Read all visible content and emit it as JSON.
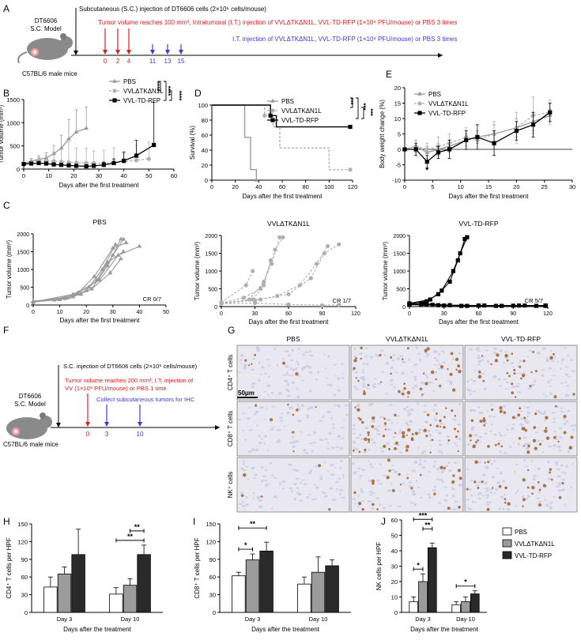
{
  "colors": {
    "red": "#e31a1c",
    "blue": "#3a3adb",
    "pbs": "#9a9a9a",
    "vvl": "#b0b0b0",
    "vtd": "#000000",
    "brown": "#a0632b",
    "tissue": "#c8cde4"
  },
  "panelA": {
    "letter": "A",
    "model": [
      "DT6606",
      "S.C. Model"
    ],
    "mice": "C57BL/6 male mice",
    "sc_injection": "Subcutaneous (S.C.) injection of DT6606 cells (2×10⁶ cells/mouse)",
    "red_text": "Tumor volume  reaches 100 mm³, Intratumoral (I.T.) injection of VVLΔTKΔN1L, VVL-TD-RFP (1×10⁸ PFU/mouse) or PBS 3 times",
    "blue_text": "I.T. injection of VVLΔTKΔN1L, VVL-TD-RFP (1×10⁸ PFU/mouse) or PBS 3 times",
    "red_days": [
      "0",
      "2",
      "4"
    ],
    "blue_days": [
      "11",
      "13",
      "15"
    ]
  },
  "panelB": {
    "letter": "B",
    "chart_data": {
      "type": "line",
      "title": "",
      "xlabel": "Days after the first treatment",
      "ylabel": "Tumor volume (mm³)",
      "xlim": [
        0,
        60
      ],
      "ylim": [
        0,
        1500
      ],
      "xticks": [
        "0",
        "10",
        "20",
        "30",
        "40",
        "50",
        "60"
      ],
      "yticks": [
        "0",
        "500",
        "1000",
        "1500"
      ],
      "legend": [
        "PBS",
        "VVLΔTKΔN1L",
        "VVL-TD-RFP"
      ],
      "sig": [
        "****",
        "****",
        "****"
      ],
      "series": [
        {
          "name": "PBS",
          "x": [
            0,
            3,
            6,
            9,
            12,
            15,
            18,
            21,
            25
          ],
          "y": [
            120,
            170,
            210,
            240,
            330,
            450,
            650,
            800,
            880
          ],
          "err": [
            30,
            60,
            80,
            110,
            180,
            280,
            420,
            480,
            460
          ]
        },
        {
          "name": "VVLΔTKΔN1L",
          "x": [
            0,
            3,
            6,
            9,
            12,
            15,
            18,
            21,
            25,
            28,
            32,
            36,
            40,
            45,
            50
          ],
          "y": [
            120,
            170,
            180,
            180,
            170,
            160,
            150,
            140,
            130,
            130,
            130,
            140,
            160,
            190,
            220
          ],
          "err": [
            30,
            60,
            70,
            110,
            200,
            280,
            440,
            310,
            320,
            260,
            280,
            320,
            220,
            320,
            360
          ]
        },
        {
          "name": "VVL-TD-RFP",
          "x": [
            0,
            3,
            6,
            9,
            12,
            15,
            18,
            21,
            25,
            28,
            32,
            36,
            40,
            45,
            52
          ],
          "y": [
            110,
            120,
            130,
            120,
            100,
            90,
            80,
            70,
            60,
            70,
            90,
            130,
            180,
            290,
            520
          ],
          "err": [
            20,
            30,
            30,
            30,
            30,
            20,
            20,
            20,
            20,
            40,
            60,
            90,
            180,
            330,
            920
          ]
        }
      ]
    }
  },
  "panelD": {
    "letter": "D",
    "chart_data": {
      "type": "line",
      "title": "",
      "xlabel": "Days after the first treatment",
      "ylabel": "Survival (%)",
      "xlim": [
        0,
        120
      ],
      "ylim": [
        0,
        100
      ],
      "xticks": [
        "0",
        "20",
        "40",
        "60",
        "80",
        "100",
        "120"
      ],
      "yticks": [
        "0",
        "20",
        "40",
        "60",
        "80",
        "100"
      ],
      "legend": [
        "PBS",
        "VVLΔTKΔN1L",
        "VVL-TD-RFP"
      ],
      "sig": [
        "***",
        "***",
        "***"
      ],
      "series": [
        {
          "name": "PBS",
          "x": [
            0,
            28,
            28,
            33,
            33,
            38,
            38
          ],
          "y": [
            100,
            100,
            57,
            57,
            14,
            14,
            0
          ]
        },
        {
          "name": "VVLΔTKΔN1L",
          "x": [
            0,
            45,
            45,
            52,
            52,
            58,
            58,
            100,
            100,
            118
          ],
          "y": [
            100,
            100,
            86,
            86,
            71,
            71,
            43,
            43,
            14,
            14
          ]
        },
        {
          "name": "VVL-TD-RFP",
          "x": [
            0,
            50,
            50,
            55,
            55,
            118
          ],
          "y": [
            100,
            100,
            86,
            86,
            71,
            71
          ]
        }
      ]
    }
  },
  "panelE": {
    "letter": "E",
    "chart_data": {
      "type": "line",
      "title": "",
      "xlabel": "Days after the first treatment",
      "ylabel": "Body weight change (%)",
      "xlim": [
        0,
        30
      ],
      "ylim": [
        -10,
        20
      ],
      "xticks": [
        "0",
        "5",
        "10",
        "15",
        "20",
        "25",
        "30"
      ],
      "yticks": [
        "-10",
        "-5",
        "0",
        "5",
        "10",
        "15",
        "20"
      ],
      "legend": [
        "PBS",
        "VVLΔTKΔN1L",
        "VVL-TD-RFP"
      ],
      "star": "*",
      "series": [
        {
          "name": "PBS",
          "x": [
            0,
            2,
            4,
            6,
            8,
            11,
            13,
            16,
            20,
            23,
            26
          ],
          "y": [
            0,
            1,
            -1,
            0,
            1,
            3,
            4,
            5,
            7,
            9,
            11
          ],
          "err": [
            0.5,
            2,
            2,
            2,
            2,
            2,
            2,
            3,
            3,
            3,
            2
          ]
        },
        {
          "name": "VVLΔTKΔN1L",
          "x": [
            0,
            2,
            4,
            6,
            8,
            11,
            13,
            16,
            20,
            23,
            26
          ],
          "y": [
            0,
            1,
            0,
            1,
            2,
            4,
            3,
            5,
            7,
            11,
            12
          ],
          "err": [
            0.5,
            2,
            2,
            3,
            3,
            3,
            3,
            4,
            5,
            6,
            4
          ]
        },
        {
          "name": "VVL-TD-RFP",
          "x": [
            0,
            2,
            4,
            6,
            8,
            11,
            13,
            16,
            20,
            23,
            26
          ],
          "y": [
            0,
            0,
            -4,
            -1,
            0,
            3,
            4,
            2,
            6,
            8,
            12
          ],
          "err": [
            0.5,
            2,
            2,
            2,
            3,
            3,
            4,
            4,
            3,
            4,
            3
          ]
        }
      ]
    }
  },
  "panelC": {
    "letter": "C",
    "xlabel": "Days after the first treatment",
    "ylabel": "Tumor volume (mm³)",
    "charts": [
      {
        "title": "PBS",
        "xticks": [
          "0",
          "10",
          "20",
          "30",
          "40",
          "50"
        ],
        "xmax": 50,
        "yticks": [
          "0",
          "500",
          "1000",
          "1500",
          "2000"
        ],
        "ymax": 2000,
        "cr": "CR 0/7"
      },
      {
        "title": "VVLΔTKΔN1L",
        "xticks": [
          "0",
          "30",
          "60",
          "90",
          "120"
        ],
        "xmax": 120,
        "yticks": [
          "0",
          "500",
          "1000",
          "1500",
          "2000"
        ],
        "ymax": 2000,
        "cr": "CR 1/7"
      },
      {
        "title": "VVL-TD-RFP",
        "xticks": [
          "0",
          "30",
          "60",
          "90",
          "120"
        ],
        "xmax": 120,
        "yticks": [
          "0",
          "500",
          "1000",
          "1500",
          "2000"
        ],
        "ymax": 2000,
        "cr": "CR 5/7"
      }
    ]
  },
  "panelF": {
    "letter": "F",
    "model": [
      "DT6606",
      "S.C. Model"
    ],
    "mice": "C57BL/6 male mice",
    "sc_injection": "S.C. injection of DT6606 cells (2×10⁶ cells/mouse)",
    "red_text": [
      "Tumor volume  reaches 200 mm³, I.T. injection of",
      "VV (1×10⁸ PFU/mouse) or PBS 1 time"
    ],
    "blue_text": "Collect subcutaneous tumors for IHC",
    "red_days": [
      "0"
    ],
    "blue_days": [
      "3",
      "10"
    ]
  },
  "panelG": {
    "letter": "G",
    "columns": [
      "PBS",
      "VVLΔTKΔN1L",
      "VVL-TD-RFP"
    ],
    "rows": [
      "CD4⁺ T cells",
      "CD8⁺ T cells",
      "NK⁺ cells"
    ],
    "scale_bar": "50μm"
  },
  "bars": [
    {
      "letter": "H",
      "chart_data": {
        "type": "bar",
        "ylabel": "CD4⁺ T cells per HPF",
        "xlabel": "Days after the treatment",
        "categories": [
          "Day 3",
          "Day 10"
        ],
        "ylim": [
          0,
          150
        ],
        "yticks": [
          "0",
          "30",
          "60",
          "90",
          "120",
          "150"
        ],
        "series": [
          {
            "name": "PBS",
            "values": [
              43,
              31
            ],
            "err": [
              17,
              11
            ]
          },
          {
            "name": "VVLΔTKΔN1L",
            "values": [
              65,
              46
            ],
            "err": [
              12,
              11
            ]
          },
          {
            "name": "VVL-TD-RFP",
            "values": [
              98,
              98
            ],
            "err": [
              43,
              16
            ]
          }
        ],
        "sig": [
          {
            "cat": 1,
            "from": 0,
            "to": 2,
            "label": "**"
          },
          {
            "cat": 1,
            "from": 1,
            "to": 2,
            "label": "**"
          }
        ]
      }
    },
    {
      "letter": "I",
      "chart_data": {
        "type": "bar",
        "ylabel": "CD8⁺ T cells per HPF",
        "xlabel": "Days after the treatment",
        "categories": [
          "Day 3",
          "Day 10"
        ],
        "ylim": [
          0,
          150
        ],
        "yticks": [
          "0",
          "30",
          "60",
          "90",
          "120",
          "150"
        ],
        "series": [
          {
            "name": "PBS",
            "values": [
              62,
              48
            ],
            "err": [
              6,
              12
            ]
          },
          {
            "name": "VVLΔTKΔN1L",
            "values": [
              89,
              68
            ],
            "err": [
              10,
              26
            ]
          },
          {
            "name": "VVL-TD-RFP",
            "values": [
              104,
              79
            ],
            "err": [
              15,
              10
            ]
          }
        ],
        "sig": [
          {
            "cat": 0,
            "from": 0,
            "to": 1,
            "label": "*"
          },
          {
            "cat": 0,
            "from": 0,
            "to": 2,
            "label": "**"
          }
        ]
      }
    },
    {
      "letter": "J",
      "chart_data": {
        "type": "bar",
        "ylabel": "NK cells per HPF",
        "xlabel": "Days after the treatment",
        "categories": [
          "Day 3",
          "Day 10"
        ],
        "ylim": [
          0,
          60
        ],
        "yticks": [
          "0",
          "10",
          "20",
          "30",
          "40",
          "50",
          "60"
        ],
        "series": [
          {
            "name": "PBS",
            "values": [
              7,
              5
            ],
            "err": [
              3,
              2
            ]
          },
          {
            "name": "VVLΔTKΔN1L",
            "values": [
              20,
              7
            ],
            "err": [
              5,
              3
            ]
          },
          {
            "name": "VVL-TD-RFP",
            "values": [
              42,
              12
            ],
            "err": [
              3,
              2
            ]
          }
        ],
        "sig": [
          {
            "cat": 0,
            "from": 0,
            "to": 1,
            "label": "*"
          },
          {
            "cat": 0,
            "from": 1,
            "to": 2,
            "label": "**"
          },
          {
            "cat": 0,
            "from": 0,
            "to": 2,
            "label": "***"
          },
          {
            "cat": 1,
            "from": 0,
            "to": 2,
            "label": "*"
          }
        ]
      }
    }
  ],
  "bar_legend": [
    "PBS",
    "VVLΔTKΔN1L",
    "VVL-TD-RFP"
  ]
}
